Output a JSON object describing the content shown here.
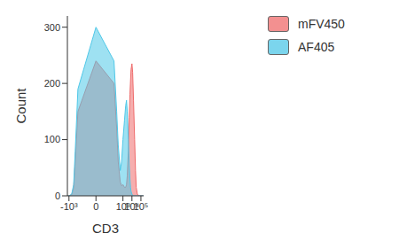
{
  "chart_data": {
    "type": "area",
    "x_label": "CD3",
    "y_label": "Count",
    "log": "x",
    "legend": "upper right",
    "x": [
      -1500,
      -1000,
      -500,
      -300,
      -200,
      -100,
      0,
      100,
      200,
      300,
      500,
      700,
      1000,
      1500,
      2000,
      2500,
      3000,
      4000,
      5000,
      6000,
      7000,
      8000,
      10000,
      12000,
      15000,
      20000,
      25000,
      30000,
      40000,
      60000,
      200000
    ],
    "series": [
      {
        "name": "mFV450",
        "color": "#ef6b6b",
        "values": [
          0,
          0,
          2,
          15,
          60,
          150,
          240,
          200,
          120,
          60,
          25,
          18,
          20,
          15,
          15,
          20,
          35,
          80,
          140,
          180,
          205,
          225,
          235,
          220,
          170,
          100,
          45,
          15,
          3,
          0,
          0
        ]
      },
      {
        "name": "AF405",
        "color": "#4fc8e8",
        "values": [
          0,
          0,
          3,
          20,
          80,
          190,
          300,
          240,
          150,
          90,
          45,
          60,
          100,
          135,
          160,
          170,
          150,
          100,
          55,
          30,
          15,
          8,
          3,
          1,
          0,
          0,
          0,
          0,
          0,
          0,
          0
        ]
      }
    ],
    "xlim": [
      -1500,
      200000
    ],
    "xticks": [
      {
        "value": -1000,
        "label": "-10³"
      },
      0,
      {
        "value": 1000,
        "label": "10³"
      },
      {
        "value": 10000,
        "label": "10⁴"
      },
      {
        "value": 100000,
        "label": "10⁵"
      }
    ],
    "ylim": [
      0,
      320
    ],
    "yticks": [
      0,
      100,
      200,
      300
    ]
  }
}
